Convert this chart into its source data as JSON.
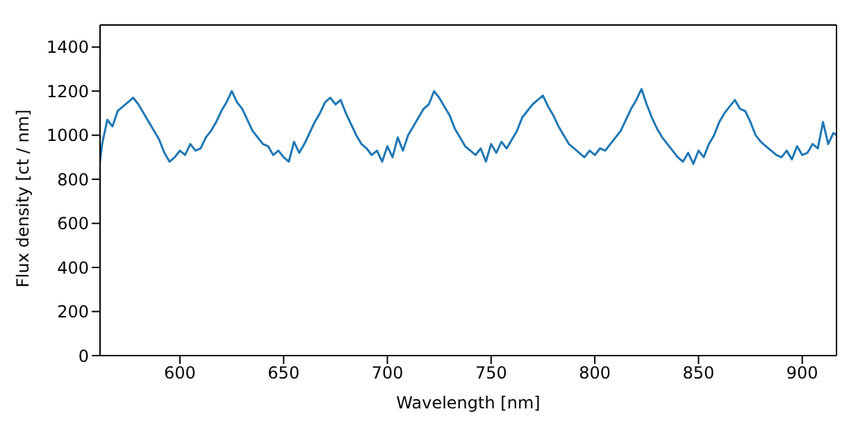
{
  "chart_data": {
    "type": "line",
    "xlabel": "Wavelength [nm]",
    "ylabel": "Flux density [ct / nm]",
    "xlim": [
      561.5,
      916.5
    ],
    "ylim": [
      0,
      1500
    ],
    "xticks": [
      600,
      650,
      700,
      750,
      800,
      850,
      900
    ],
    "yticks": [
      0,
      200,
      400,
      600,
      800,
      1000,
      1200,
      1400
    ],
    "grid": false,
    "legend": false,
    "marker": "none",
    "line_style": "solid",
    "x": [
      561.5,
      562.5,
      565,
      567.5,
      570,
      572.5,
      575,
      577.5,
      580,
      582.5,
      585,
      587.5,
      590,
      592.5,
      595,
      597.5,
      600,
      602.5,
      605,
      607.5,
      610,
      612.5,
      615,
      617.5,
      620,
      622.5,
      625,
      627.5,
      630,
      632.5,
      635,
      637.5,
      640,
      642.5,
      645,
      647.5,
      650,
      652.5,
      655,
      657.5,
      660,
      662.5,
      665,
      667.5,
      670,
      672.5,
      675,
      677.5,
      680,
      682.5,
      685,
      687.5,
      690,
      692.5,
      695,
      697.5,
      700,
      702.5,
      705,
      707.5,
      710,
      712.5,
      715,
      717.5,
      720,
      722.5,
      725,
      727.5,
      730,
      732.5,
      735,
      737.5,
      740,
      742.5,
      745,
      747.5,
      750,
      752.5,
      755,
      757.5,
      760,
      762.5,
      765,
      767.5,
      770,
      772.5,
      775,
      777.5,
      780,
      782.5,
      785,
      787.5,
      790,
      792.5,
      795,
      797.5,
      800,
      802.5,
      805,
      807.5,
      810,
      812.5,
      815,
      817.5,
      820,
      822.5,
      825,
      827.5,
      830,
      832.5,
      835,
      837.5,
      840,
      842.5,
      845,
      847.5,
      850,
      852.5,
      855,
      857.5,
      860,
      862.5,
      865,
      867.5,
      870,
      872.5,
      875,
      877.5,
      880,
      882.5,
      885,
      887.5,
      890,
      892.5,
      895,
      897.5,
      900,
      902.5,
      905,
      907.5,
      910,
      912.5,
      915,
      916.5
    ],
    "series": [
      {
        "color": "#1f77b4",
        "values": [
          880,
          960,
          1070,
          1040,
          1110,
          1130,
          1150,
          1170,
          1140,
          1100,
          1060,
          1020,
          980,
          920,
          880,
          900,
          930,
          910,
          960,
          930,
          940,
          990,
          1020,
          1060,
          1110,
          1150,
          1200,
          1150,
          1120,
          1070,
          1020,
          990,
          960,
          950,
          910,
          930,
          900,
          880,
          970,
          920,
          960,
          1010,
          1060,
          1100,
          1150,
          1170,
          1140,
          1160,
          1100,
          1050,
          1000,
          960,
          940,
          910,
          930,
          880,
          950,
          900,
          990,
          930,
          1000,
          1040,
          1080,
          1120,
          1140,
          1200,
          1170,
          1130,
          1090,
          1030,
          990,
          950,
          930,
          910,
          940,
          880,
          960,
          920,
          970,
          940,
          980,
          1020,
          1080,
          1110,
          1140,
          1160,
          1180,
          1130,
          1090,
          1040,
          1000,
          960,
          940,
          920,
          900,
          930,
          910,
          940,
          930,
          960,
          990,
          1020,
          1070,
          1120,
          1160,
          1210,
          1140,
          1080,
          1030,
          990,
          960,
          930,
          900,
          880,
          920,
          870,
          930,
          900,
          960,
          1000,
          1060,
          1100,
          1130,
          1160,
          1120,
          1110,
          1060,
          1000,
          970,
          950,
          930,
          910,
          900,
          930,
          890,
          950,
          910,
          920,
          960,
          940,
          1060,
          960,
          1010,
          1000
        ]
      }
    ]
  }
}
